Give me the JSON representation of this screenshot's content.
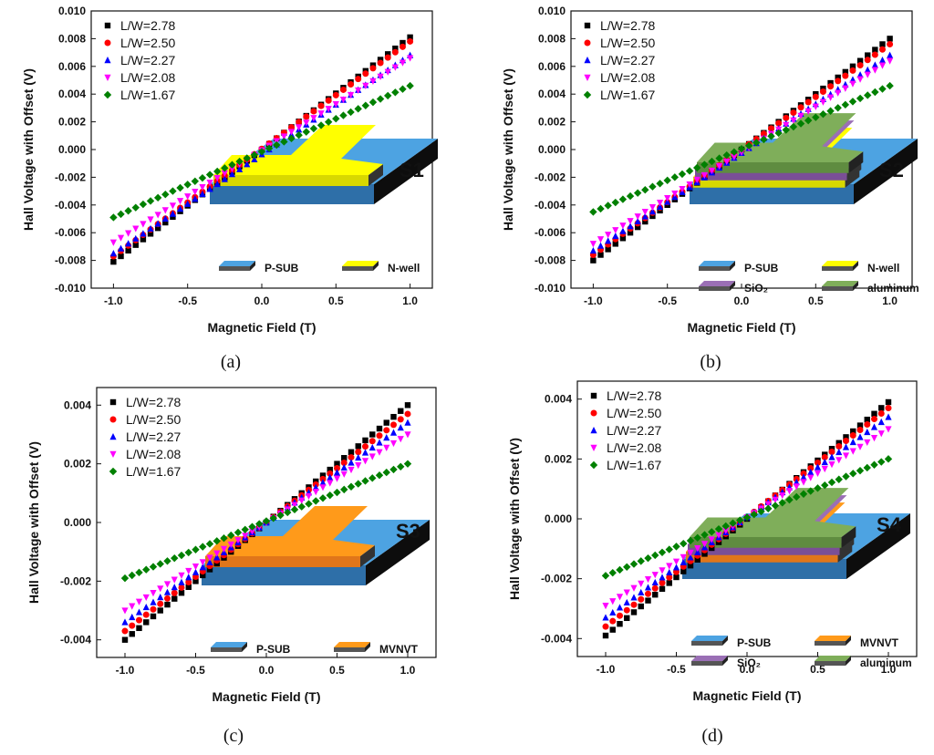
{
  "colors": {
    "series": [
      "#000000",
      "#ff0000",
      "#0000ff",
      "#ff00ff",
      "#008000"
    ],
    "p_sub": "#4da3e2",
    "n_well": "#ffff00",
    "mvnvt": "#ff9a1a",
    "sio2": "#9a6fb5",
    "aluminum": "#7fae5a"
  },
  "chart_data": [
    {
      "type": "scatter",
      "panel_label": "(a)",
      "sample_label": "S1",
      "xlabel": "Magnetic Field (T)",
      "ylabel": "Hall Voltage with Offset (V)",
      "xlim": [
        -1.15,
        1.15
      ],
      "ylim": [
        -0.01,
        0.01
      ],
      "xticks": [
        -1.0,
        -0.5,
        0.0,
        0.5,
        1.0
      ],
      "xtick_labels": [
        "-1.0",
        "-0.5",
        "0.0",
        "0.5",
        "1.0"
      ],
      "yticks": [
        -0.01,
        -0.008,
        -0.006,
        -0.004,
        -0.002,
        0.0,
        0.002,
        0.004,
        0.006,
        0.008,
        0.01
      ],
      "ytick_labels": [
        "-0.010",
        "-0.008",
        "-0.006",
        "-0.004",
        "-0.002",
        "0.000",
        "0.002",
        "0.004",
        "0.006",
        "0.008",
        "0.010"
      ],
      "grid": false,
      "legend_position": "top-left",
      "x_start": -1.0,
      "x_end": 1.0,
      "n_points": 41,
      "series": [
        {
          "name": "L/W=2.78",
          "marker": "square",
          "y_start": -0.0081,
          "y_end": 0.0081
        },
        {
          "name": "L/W=2.50",
          "marker": "circle",
          "y_start": -0.0077,
          "y_end": 0.0078
        },
        {
          "name": "L/W=2.27",
          "marker": "triangle-up",
          "y_start": -0.0075,
          "y_end": 0.0068
        },
        {
          "name": "L/W=2.08",
          "marker": "triangle-down",
          "y_start": -0.0067,
          "y_end": 0.0066
        },
        {
          "name": "L/W=1.67",
          "marker": "diamond",
          "y_start": -0.0049,
          "y_end": 0.0046
        }
      ],
      "inset": {
        "layers": [
          "p_sub",
          "n_well"
        ],
        "legend": [
          "P-SUB",
          "N-well"
        ]
      }
    },
    {
      "type": "scatter",
      "panel_label": "(b)",
      "sample_label": "S2",
      "xlabel": "Magnetic Field (T)",
      "ylabel": "Hall Voltage with Offset (V)",
      "xlim": [
        -1.15,
        1.15
      ],
      "ylim": [
        -0.01,
        0.01
      ],
      "xticks": [
        -1.0,
        -0.5,
        0.0,
        0.5,
        1.0
      ],
      "xtick_labels": [
        "-1.0",
        "-0.5",
        "0.0",
        "0.5",
        "1.0"
      ],
      "yticks": [
        -0.01,
        -0.008,
        -0.006,
        -0.004,
        -0.002,
        0.0,
        0.002,
        0.004,
        0.006,
        0.008,
        0.01
      ],
      "ytick_labels": [
        "-0.010",
        "-0.008",
        "-0.006",
        "-0.004",
        "-0.002",
        "0.000",
        "0.002",
        "0.004",
        "0.006",
        "0.008",
        "0.010"
      ],
      "grid": false,
      "legend_position": "top-left",
      "x_start": -1.0,
      "x_end": 1.0,
      "n_points": 41,
      "series": [
        {
          "name": "L/W=2.78",
          "marker": "square",
          "y_start": -0.008,
          "y_end": 0.008
        },
        {
          "name": "L/W=2.50",
          "marker": "circle",
          "y_start": -0.0076,
          "y_end": 0.0076
        },
        {
          "name": "L/W=2.27",
          "marker": "triangle-up",
          "y_start": -0.0073,
          "y_end": 0.0068
        },
        {
          "name": "L/W=2.08",
          "marker": "triangle-down",
          "y_start": -0.0068,
          "y_end": 0.0064
        },
        {
          "name": "L/W=1.67",
          "marker": "diamond",
          "y_start": -0.0045,
          "y_end": 0.0046
        }
      ],
      "inset": {
        "layers": [
          "p_sub",
          "n_well",
          "sio2",
          "aluminum"
        ],
        "legend": [
          "P-SUB",
          "N-well",
          "SiO₂",
          "aluminum"
        ]
      }
    },
    {
      "type": "scatter",
      "panel_label": "(c)",
      "sample_label": "S3",
      "xlabel": "Magnetic Field (T)",
      "ylabel": "Hall Voltage with Offset (V)",
      "xlim": [
        -1.2,
        1.2
      ],
      "ylim": [
        -0.0046,
        0.0046
      ],
      "xticks": [
        -1.0,
        -0.5,
        0.0,
        0.5,
        1.0
      ],
      "xtick_labels": [
        "-1.0",
        "-0.5",
        "0.0",
        "0.5",
        "1.0"
      ],
      "yticks": [
        -0.004,
        -0.002,
        0.0,
        0.002,
        0.004
      ],
      "ytick_labels": [
        "-0.004",
        "-0.002",
        "0.000",
        "0.002",
        "0.004"
      ],
      "grid": false,
      "legend_position": "top-left",
      "x_start": -1.0,
      "x_end": 1.0,
      "n_points": 41,
      "series": [
        {
          "name": "L/W=2.78",
          "marker": "square",
          "y_start": -0.004,
          "y_end": 0.004
        },
        {
          "name": "L/W=2.50",
          "marker": "circle",
          "y_start": -0.0037,
          "y_end": 0.0037
        },
        {
          "name": "L/W=2.27",
          "marker": "triangle-up",
          "y_start": -0.0034,
          "y_end": 0.0034
        },
        {
          "name": "L/W=2.08",
          "marker": "triangle-down",
          "y_start": -0.003,
          "y_end": 0.003
        },
        {
          "name": "L/W=1.67",
          "marker": "diamond",
          "y_start": -0.0019,
          "y_end": 0.002
        }
      ],
      "inset": {
        "layers": [
          "p_sub",
          "mvnvt"
        ],
        "legend": [
          "P-SUB",
          "MVNVT"
        ]
      }
    },
    {
      "type": "scatter",
      "panel_label": "(d)",
      "sample_label": "S4",
      "xlabel": "Magnetic Field (T)",
      "ylabel": "Hall Voltage with Offset (V)",
      "xlim": [
        -1.2,
        1.2
      ],
      "ylim": [
        -0.0046,
        0.0046
      ],
      "xticks": [
        -1.0,
        -0.5,
        0.0,
        0.5,
        1.0
      ],
      "xtick_labels": [
        "-1.0",
        "-0.5",
        "0.0",
        "0.5",
        "1.0"
      ],
      "yticks": [
        -0.004,
        -0.002,
        0.0,
        0.002,
        0.004
      ],
      "ytick_labels": [
        "-0.004",
        "-0.002",
        "0.000",
        "0.002",
        "0.004"
      ],
      "grid": false,
      "legend_position": "top-left",
      "x_start": -1.0,
      "x_end": 1.0,
      "n_points": 41,
      "series": [
        {
          "name": "L/W=2.78",
          "marker": "square",
          "y_start": -0.0039,
          "y_end": 0.0039
        },
        {
          "name": "L/W=2.50",
          "marker": "circle",
          "y_start": -0.0036,
          "y_end": 0.0037
        },
        {
          "name": "L/W=2.27",
          "marker": "triangle-up",
          "y_start": -0.0033,
          "y_end": 0.0034
        },
        {
          "name": "L/W=2.08",
          "marker": "triangle-down",
          "y_start": -0.0029,
          "y_end": 0.003
        },
        {
          "name": "L/W=1.67",
          "marker": "diamond",
          "y_start": -0.0019,
          "y_end": 0.002
        }
      ],
      "inset": {
        "layers": [
          "p_sub",
          "mvnvt",
          "sio2",
          "aluminum"
        ],
        "legend": [
          "P-SUB",
          "MVNVT",
          "SiO₂",
          "aluminum"
        ]
      }
    }
  ]
}
